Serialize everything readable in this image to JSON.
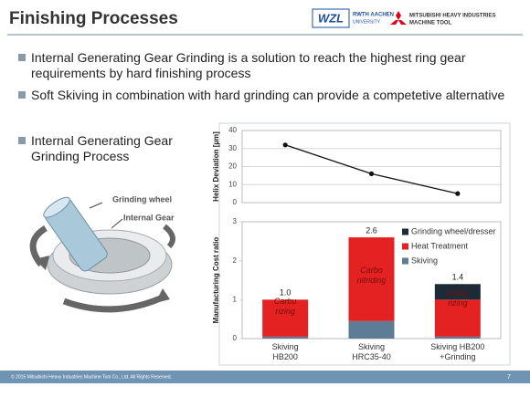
{
  "slide": {
    "title": "Finishing Processes",
    "logos": [
      "WZL",
      "RWTH AACHEN",
      "UNIVERSITY",
      "MITSUBISHI HEAVY INDUSTRIES",
      "MACHINE TOOL"
    ],
    "bullets": [
      "Internal Generating Gear Grinding is a solution to reach the highest ring gear requirements by hard finishing process",
      "Soft Skiving in combination with hard grinding can provide a competetive alternative",
      "Internal Generating Gear Grinding Process"
    ],
    "figure_labels": [
      "Grinding wheel",
      "Internal Gear"
    ],
    "footer": "© 2015 Mitsubishi Heavy Industries Machine Tool Co., Ltd. All Rights Reserved.",
    "page_number": "7"
  },
  "chart_data": [
    {
      "type": "line",
      "y_label": "Helix Deviation [µm]",
      "categories": [
        null,
        null,
        null
      ],
      "values": [
        32,
        16,
        5
      ],
      "color": "#111111",
      "ylim": [
        0,
        40
      ],
      "yticks": [
        0,
        10,
        20,
        30,
        40
      ],
      "grid": true
    },
    {
      "type": "stacked_bar",
      "y_label": "Manufacturing Cost ratio",
      "categories": [
        "Skiving\nHB200",
        "Skiving\nHRC35-40",
        "Skiving HB200\n+Grinding"
      ],
      "series": [
        {
          "name": "Skiving",
          "color": "#5f7c96",
          "values": [
            0.05,
            0.45,
            0.05
          ]
        },
        {
          "name": "Heat Treatment",
          "color": "#e42222",
          "values": [
            0.95,
            2.15,
            0.95
          ]
        },
        {
          "name": "Grinding wheel/dresser",
          "color": "#1b2c38",
          "values": [
            0,
            0,
            0.4
          ]
        }
      ],
      "totals": [
        1,
        2.6,
        1.4
      ],
      "total_labels": [
        "1.0",
        "2.6",
        "1.4"
      ],
      "annotations": [
        "Carbu\nrizing",
        "Carbo\nnitriding",
        "Carbu\nrizing"
      ],
      "ylim": [
        0,
        3
      ],
      "yticks": [
        0,
        1,
        2,
        3
      ],
      "grid": false,
      "legend": "top-right"
    }
  ]
}
